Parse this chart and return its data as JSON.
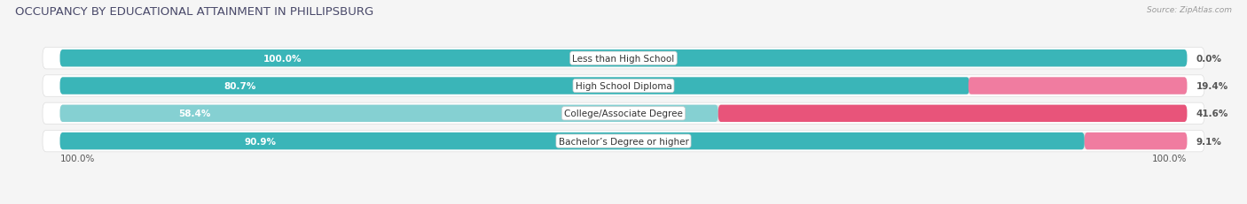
{
  "title": "OCCUPANCY BY EDUCATIONAL ATTAINMENT IN PHILLIPSBURG",
  "source": "Source: ZipAtlas.com",
  "categories": [
    "Less than High School",
    "High School Diploma",
    "College/Associate Degree",
    "Bachelor’s Degree or higher"
  ],
  "owner_pct": [
    100.0,
    80.7,
    58.4,
    90.9
  ],
  "renter_pct": [
    0.0,
    19.4,
    41.6,
    9.1
  ],
  "owner_color": [
    "#3ab5b8",
    "#3ab5b8",
    "#85d0d2",
    "#3ab5b8"
  ],
  "renter_color": [
    "#f07ca0",
    "#f07ca0",
    "#e8547a",
    "#f07ca0"
  ],
  "bg_color": "#f5f5f5",
  "bar_bg_color": "#e8e8e8",
  "row_bg_color": "#ffffff",
  "bar_height": 0.62,
  "title_fontsize": 9.5,
  "label_fontsize": 7.5,
  "tick_fontsize": 7.5,
  "legend_fontsize": 7.5
}
